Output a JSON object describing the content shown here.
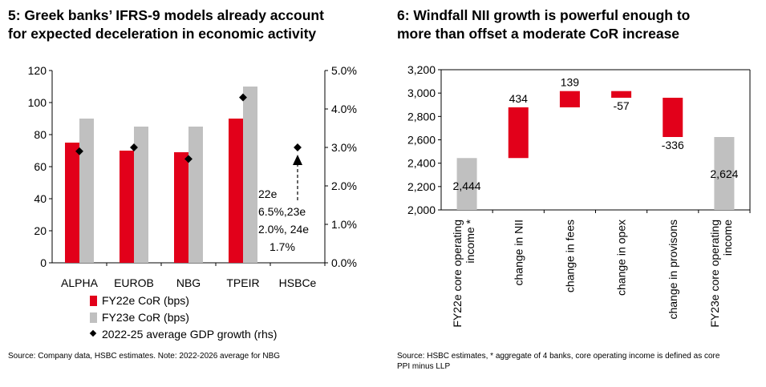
{
  "left": {
    "title_line1": "5: Greek banks’ IFRS-9 models already account",
    "title_line2": "for expected deceleration in economic activity",
    "source": "Source: Company data, HSBC estimates. Note: 2022-2026 average for NBG",
    "annotation": [
      "22e",
      "6.5%,23e",
      "2.0%, 24e",
      "1.7%"
    ],
    "legend": [
      {
        "label": "FY22e CoR (bps)",
        "color": "#e2001a",
        "marker": "square"
      },
      {
        "label": "FY23e CoR (bps)",
        "color": "#c0c0c0",
        "marker": "square"
      },
      {
        "label": "2022-25 average GDP growth (rhs)",
        "color": "#000000",
        "marker": "diamond"
      }
    ]
  },
  "right": {
    "title_line1": "6: Windfall NII growth is powerful enough to",
    "title_line2": "more than offset a moderate CoR increase",
    "source_line1": "Source: HSBC estimates, * aggregate of 4 banks, core operating income is defined as core",
    "source_line2": "PPI minus LLP"
  },
  "chart_data": [
    {
      "type": "bar",
      "categories": [
        "ALPHA",
        "EUROB",
        "NBG",
        "TPEIR",
        "HSBCe"
      ],
      "series": [
        {
          "name": "FY22e CoR (bps)",
          "values": [
            75,
            70,
            69,
            90,
            null
          ],
          "color": "#e2001a"
        },
        {
          "name": "FY23e CoR (bps)",
          "values": [
            90,
            85,
            85,
            110,
            null
          ],
          "color": "#c0c0c0"
        },
        {
          "name": "2022-25 average GDP growth (rhs)",
          "type": "scatter",
          "axis": "right",
          "values": [
            2.9,
            3.0,
            2.7,
            4.3,
            3.0
          ],
          "color": "#000000"
        }
      ],
      "ylim": [
        0,
        120
      ],
      "y_ticks": [
        0,
        20,
        40,
        60,
        80,
        100,
        120
      ],
      "y2lim": [
        0,
        5
      ],
      "y2_ticks": [
        "0.0%",
        "1.0%",
        "2.0%",
        "3.0%",
        "4.0%",
        "5.0%"
      ],
      "grid": false
    },
    {
      "type": "bar",
      "subtype": "waterfall",
      "categories": [
        "FY22e core operating income *",
        "change in NII",
        "change in fees",
        "change in opex",
        "change in provisons",
        "FY23e core operating income"
      ],
      "values": [
        2444,
        434,
        139,
        -57,
        -336,
        2624
      ],
      "value_labels": [
        "2,444",
        "434",
        "139",
        "-57",
        "-336",
        "2,624"
      ],
      "total_color": "#c0c0c0",
      "delta_color": "#e2001a",
      "ylim": [
        2000,
        3200
      ],
      "y_ticks": [
        "2,000",
        "2,200",
        "2,400",
        "2,600",
        "2,800",
        "3,000",
        "3,200"
      ],
      "grid": false
    }
  ]
}
